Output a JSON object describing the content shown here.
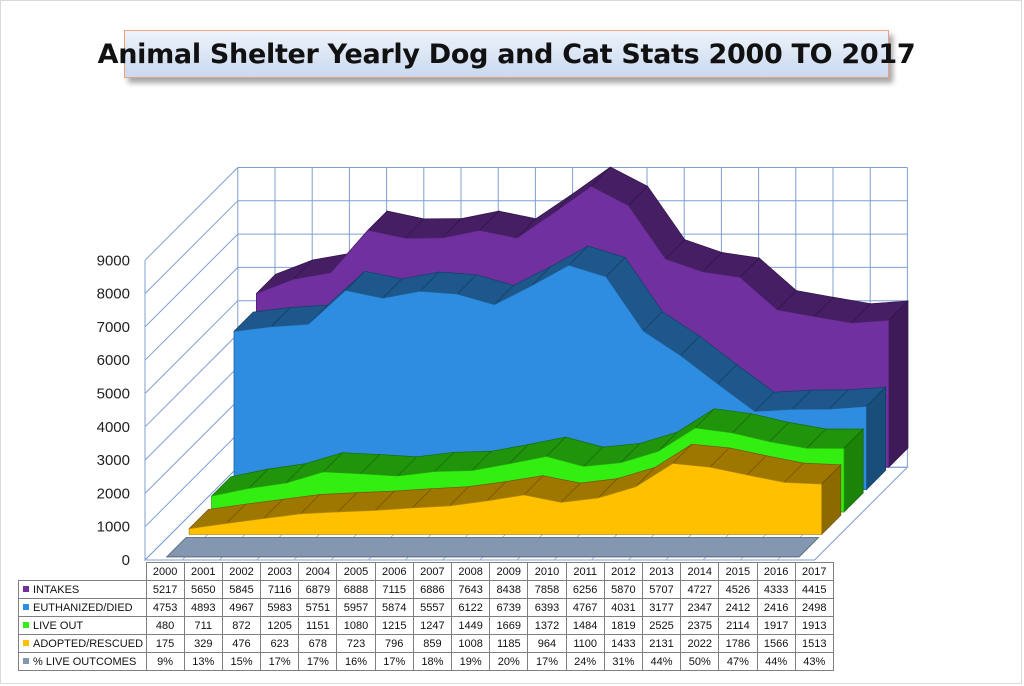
{
  "title": "Animal Shelter Yearly Dog and Cat Stats 2000 TO 2017",
  "chart_data": {
    "type": "area",
    "style": "3d",
    "title": "Animal Shelter Yearly Dog and Cat Stats 2000 TO 2017",
    "categories": [
      "2000",
      "2001",
      "2002",
      "2003",
      "2004",
      "2005",
      "2006",
      "2007",
      "2008",
      "2009",
      "2010",
      "2011",
      "2012",
      "2013",
      "2014",
      "2015",
      "2016",
      "2017"
    ],
    "yticks": [
      "0",
      "1000",
      "2000",
      "3000",
      "4000",
      "5000",
      "6000",
      "7000",
      "8000",
      "9000"
    ],
    "ylim": [
      0,
      9000
    ],
    "grid": true,
    "legend": "data-table",
    "series": [
      {
        "name": "INTAKES",
        "color": "#7030a0",
        "values": [
          5217,
          5650,
          5845,
          7116,
          6879,
          6888,
          7115,
          6886,
          7643,
          8438,
          7858,
          6256,
          5870,
          5707,
          4727,
          4526,
          4333,
          4415
        ]
      },
      {
        "name": "EUTHANIZED/DIED",
        "color": "#2e8de0",
        "values": [
          4753,
          4893,
          4967,
          5983,
          5751,
          5957,
          5874,
          5557,
          6122,
          6739,
          6393,
          4767,
          4031,
          3177,
          2347,
          2412,
          2416,
          2498
        ]
      },
      {
        "name": "LIVE OUT",
        "color": "#33ee11",
        "values": [
          480,
          711,
          872,
          1205,
          1151,
          1080,
          1215,
          1247,
          1449,
          1669,
          1372,
          1484,
          1819,
          2525,
          2375,
          2114,
          1917,
          1913
        ]
      },
      {
        "name": "ADOPTED/RESCUED",
        "color": "#ffc000",
        "values": [
          175,
          329,
          476,
          623,
          678,
          723,
          796,
          859,
          1008,
          1185,
          964,
          1100,
          1433,
          2131,
          2022,
          1786,
          1566,
          1513
        ]
      },
      {
        "name": "% LIVE OUTCOMES",
        "color": "#8497b0",
        "values": [
          9,
          13,
          15,
          17,
          17,
          16,
          17,
          18,
          19,
          20,
          17,
          24,
          31,
          44,
          50,
          47,
          44,
          43
        ],
        "unit": "%"
      }
    ],
    "table": {
      "years": [
        "2000",
        "2001",
        "2002",
        "2003",
        "2004",
        "2005",
        "2006",
        "2007",
        "2008",
        "2009",
        "2010",
        "2011",
        "2012",
        "2013",
        "2014",
        "2015",
        "2016",
        "2017"
      ],
      "rows": [
        {
          "label": "INTAKES",
          "color": "#7030a0",
          "cells": [
            "5217",
            "5650",
            "5845",
            "7116",
            "6879",
            "6888",
            "7115",
            "6886",
            "7643",
            "8438",
            "7858",
            "6256",
            "5870",
            "5707",
            "4727",
            "4526",
            "4333",
            "4415"
          ]
        },
        {
          "label": "EUTHANIZED/DIED",
          "color": "#2e8de0",
          "cells": [
            "4753",
            "4893",
            "4967",
            "5983",
            "5751",
            "5957",
            "5874",
            "5557",
            "6122",
            "6739",
            "6393",
            "4767",
            "4031",
            "3177",
            "2347",
            "2412",
            "2416",
            "2498"
          ]
        },
        {
          "label": "LIVE OUT",
          "color": "#33ee11",
          "cells": [
            "480",
            "711",
            "872",
            "1205",
            "1151",
            "1080",
            "1215",
            "1247",
            "1449",
            "1669",
            "1372",
            "1484",
            "1819",
            "2525",
            "2375",
            "2114",
            "1917",
            "1913"
          ]
        },
        {
          "label": "ADOPTED/RESCUED",
          "color": "#ffc000",
          "cells": [
            "175",
            "329",
            "476",
            "623",
            "678",
            "723",
            "796",
            "859",
            "1008",
            "1185",
            "964",
            "1100",
            "1433",
            "2131",
            "2022",
            "1786",
            "1566",
            "1513"
          ]
        },
        {
          "label": "% LIVE OUTCOMES",
          "color": "#8497b0",
          "cells": [
            "9%",
            "13%",
            "15%",
            "17%",
            "17%",
            "16%",
            "17%",
            "18%",
            "19%",
            "20%",
            "17%",
            "24%",
            "31%",
            "44%",
            "50%",
            "47%",
            "44%",
            "43%"
          ]
        }
      ]
    }
  }
}
